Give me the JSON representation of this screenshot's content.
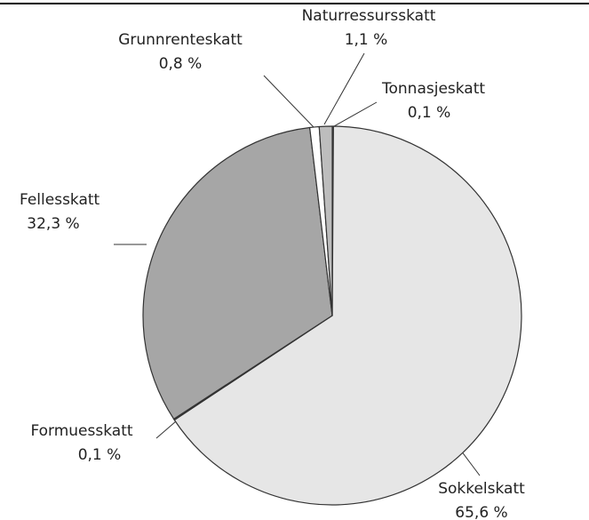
{
  "chart_data": {
    "type": "pie",
    "categories": [
      "Tonnasjeskatt",
      "Sokkelskatt",
      "Formuesskatt",
      "Fellesskatt",
      "Grunnrenteskatt",
      "Naturressursskatt"
    ],
    "values": [
      0.1,
      65.6,
      0.1,
      32.3,
      0.8,
      1.1
    ],
    "value_labels": [
      "0,1 %",
      "65,6 %",
      "0,1 %",
      "32,3 %",
      "0,8 %",
      "1,1 %"
    ],
    "colors": [
      "#8c8c8c",
      "#e6e6e6",
      "#7a7a7a",
      "#a6a6a6",
      "#ffffff",
      "#bdbdbd"
    ]
  }
}
